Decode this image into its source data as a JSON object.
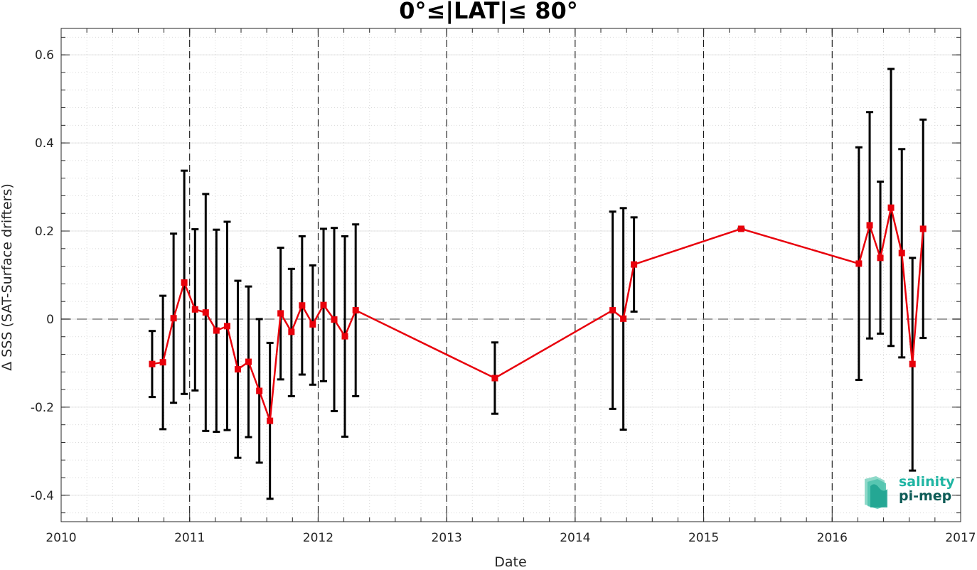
{
  "chart_data": {
    "type": "line",
    "title": "0°≤|LAT|≤ 80°",
    "xlabel": "Date",
    "ylabel": "Δ SSS (SAT-Surface drifters)",
    "xlim": [
      2010,
      2017
    ],
    "ylim": [
      -0.46,
      0.66
    ],
    "x_ticks": [
      2010,
      2011,
      2012,
      2013,
      2014,
      2015,
      2016,
      2017
    ],
    "x_tick_labels": [
      "2010",
      "2011",
      "2012",
      "2013",
      "2014",
      "2015",
      "2016",
      "2017"
    ],
    "y_ticks": [
      -0.4,
      -0.2,
      0,
      0.2,
      0.4,
      0.6
    ],
    "y_tick_labels": [
      "-0.4",
      "-0.2",
      "0",
      "0.2",
      "0.4",
      "0.6"
    ],
    "grid": true,
    "year_lines": [
      2011,
      2012,
      2013,
      2014,
      2015,
      2016
    ],
    "zero_line": 0,
    "series": [
      {
        "color": "#e8000b",
        "points": [
          {
            "x": 2010.708,
            "y": -0.102,
            "lo": -0.177,
            "hi": -0.027
          },
          {
            "x": 2010.792,
            "y": -0.098,
            "lo": -0.25,
            "hi": 0.053
          },
          {
            "x": 2010.875,
            "y": 0.002,
            "lo": -0.19,
            "hi": 0.194
          },
          {
            "x": 2010.958,
            "y": 0.083,
            "lo": -0.17,
            "hi": 0.337
          },
          {
            "x": 2011.042,
            "y": 0.022,
            "lo": -0.162,
            "hi": 0.204
          },
          {
            "x": 2011.125,
            "y": 0.015,
            "lo": -0.254,
            "hi": 0.284
          },
          {
            "x": 2011.208,
            "y": -0.026,
            "lo": -0.256,
            "hi": 0.203
          },
          {
            "x": 2011.292,
            "y": -0.016,
            "lo": -0.252,
            "hi": 0.221
          },
          {
            "x": 2011.375,
            "y": -0.114,
            "lo": -0.315,
            "hi": 0.087
          },
          {
            "x": 2011.458,
            "y": -0.097,
            "lo": -0.268,
            "hi": 0.074
          },
          {
            "x": 2011.542,
            "y": -0.163,
            "lo": -0.326,
            "hi": 0.0
          },
          {
            "x": 2011.625,
            "y": -0.231,
            "lo": -0.408,
            "hi": -0.054
          },
          {
            "x": 2011.708,
            "y": 0.013,
            "lo": -0.137,
            "hi": 0.162
          },
          {
            "x": 2011.792,
            "y": -0.029,
            "lo": -0.175,
            "hi": 0.114
          },
          {
            "x": 2011.875,
            "y": 0.031,
            "lo": -0.126,
            "hi": 0.188
          },
          {
            "x": 2011.958,
            "y": -0.012,
            "lo": -0.149,
            "hi": 0.122
          },
          {
            "x": 2012.042,
            "y": 0.032,
            "lo": -0.141,
            "hi": 0.205
          },
          {
            "x": 2012.125,
            "y": -0.001,
            "lo": -0.209,
            "hi": 0.207
          },
          {
            "x": 2012.208,
            "y": -0.039,
            "lo": -0.267,
            "hi": 0.188
          },
          {
            "x": 2012.292,
            "y": 0.02,
            "lo": -0.175,
            "hi": 0.215
          },
          {
            "x": 2013.375,
            "y": -0.134,
            "lo": -0.215,
            "hi": -0.053
          },
          {
            "x": 2014.292,
            "y": 0.02,
            "lo": -0.204,
            "hi": 0.244
          },
          {
            "x": 2014.375,
            "y": 0.001,
            "lo": -0.251,
            "hi": 0.252
          },
          {
            "x": 2014.458,
            "y": 0.124,
            "lo": 0.017,
            "hi": 0.231
          },
          {
            "x": 2015.292,
            "y": 0.205,
            "lo": 0.205,
            "hi": 0.205
          },
          {
            "x": 2016.208,
            "y": 0.126,
            "lo": -0.138,
            "hi": 0.39
          },
          {
            "x": 2016.292,
            "y": 0.213,
            "lo": -0.044,
            "hi": 0.47
          },
          {
            "x": 2016.375,
            "y": 0.139,
            "lo": -0.033,
            "hi": 0.312
          },
          {
            "x": 2016.458,
            "y": 0.253,
            "lo": -0.061,
            "hi": 0.568
          },
          {
            "x": 2016.542,
            "y": 0.15,
            "lo": -0.087,
            "hi": 0.386
          },
          {
            "x": 2016.625,
            "y": -0.102,
            "lo": -0.344,
            "hi": 0.139
          },
          {
            "x": 2016.708,
            "y": 0.205,
            "lo": -0.043,
            "hi": 0.453
          }
        ]
      }
    ]
  },
  "logo": {
    "line1": "salinity",
    "line2": "pi-mep",
    "colors": [
      "#1fb5a3",
      "#0e5c57",
      "#8fd9c9"
    ]
  }
}
